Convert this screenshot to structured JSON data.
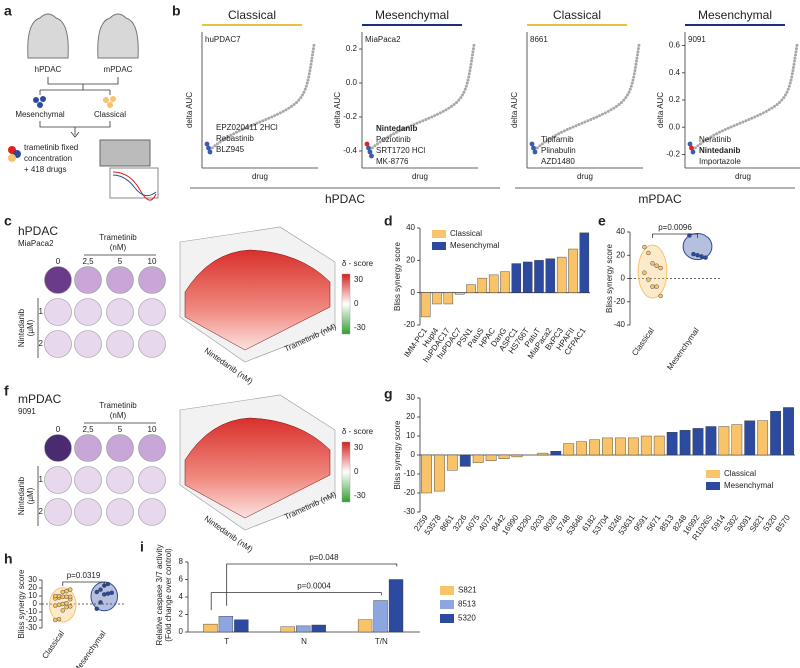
{
  "panel_labels": [
    "a",
    "b",
    "c",
    "d",
    "e",
    "f",
    "g",
    "h",
    "i"
  ],
  "a": {
    "hpdac": "hPDAC",
    "mpdac": "mPDAC",
    "mesenchymal": "Mesenchymal",
    "classical": "Classical",
    "treatment": [
      "trametinib fixed",
      "concentration",
      "+ 418 drugs"
    ]
  },
  "b": {
    "ylabel": "delta AUC",
    "xlabel": "drug",
    "groups": [
      "hPDAC",
      "mPDAC"
    ],
    "panels": [
      {
        "subtype": "Classical",
        "line": "huPDAC7",
        "hits": [
          "EPZ020411 2HCl",
          "Rebastinib",
          "BLZ945"
        ],
        "hit_colors": [
          "#3b5bb0",
          "#3b5bb0",
          "#3b5bb0"
        ]
      },
      {
        "subtype": "Mesenchymal",
        "line": "MiaPaca2",
        "hits": [
          "Nintedanib",
          "Poziotinib",
          "SRT1720 HCl",
          "MK-8776"
        ],
        "hit_colors": [
          "#e0201b",
          "#3b5bb0",
          "#3b5bb0",
          "#3b5bb0"
        ],
        "ylim": [
          -0.5,
          0.3
        ],
        "yticks": [
          0.2,
          {
            "value": 0,
            "label": "0.0"
          },
          -0.2,
          -0.4
        ]
      },
      {
        "subtype": "Classical",
        "line": "8661",
        "hits": [
          "Tipifarnib",
          "Plinabulin",
          "AZD1480"
        ],
        "hit_colors": [
          "#3b5bb0",
          "#3b5bb0",
          "#3b5bb0"
        ]
      },
      {
        "subtype": "Mesenchymal",
        "line": "9091",
        "hits": [
          "Neratinib",
          "Nintedanib",
          "Importazole"
        ],
        "hit_colors": [
          "#3b5bb0",
          "#e0201b",
          "#3b5bb0"
        ],
        "ylim": [
          -0.3,
          0.7
        ],
        "yticks": [
          0.6,
          0.4,
          0.2,
          {
            "value": 0,
            "label": "0.0"
          },
          -0.2
        ]
      }
    ]
  },
  "c": {
    "title": "hPDAC",
    "line": "MiaPaca2",
    "drug_x": "Trametinib",
    "unit_x": "(nM)",
    "doses_x": [
      "0",
      "2,5",
      "5",
      "10"
    ],
    "drug_y": "Nintedanib",
    "unit_y": "(µM)",
    "doses_y": [
      "1",
      "2"
    ],
    "score_label": "δ - score",
    "scale": [
      30,
      0,
      -30
    ],
    "axis3d": [
      "Nintedanib (nM)",
      "Trametinib (nM)"
    ]
  },
  "f": {
    "title": "mPDAC",
    "line": "9091",
    "drug_x": "Trametinib",
    "unit_x": "(nM)",
    "doses_x": [
      "0",
      "2,5",
      "5",
      "10"
    ],
    "drug_y": "Nintedanib",
    "unit_y": "(µM)",
    "doses_y": [
      "1",
      "2"
    ],
    "score_label": "δ - score",
    "scale": [
      30,
      0,
      -30
    ],
    "axis3d": [
      "Nintedanib (nM)",
      "Trametinib (nM)"
    ]
  },
  "d": {
    "type": "bar",
    "ylabel": "Bliss synergy score",
    "ylim": [
      -20,
      40
    ],
    "yticks": [
      -20,
      0,
      20,
      40
    ],
    "categories": [
      "IMM-PC1",
      "Hupt4",
      "huPDAC17",
      "huPDAC7",
      "PSN1",
      "PatuS",
      "HPAC",
      "DanG",
      "ASPC1",
      "HS766T",
      "PatuT",
      "MiaPaca2",
      "BxPC3",
      "HPAFII",
      "CFPAC1"
    ],
    "values": [
      -15,
      -7,
      -7,
      -1,
      5,
      9,
      11,
      13,
      18,
      19,
      20,
      21,
      22,
      27,
      37
    ],
    "colors": [
      "#f9c36a",
      "#f9c36a",
      "#f9c36a",
      "#f9c36a",
      "#f9c36a",
      "#f9c36a",
      "#f9c36a",
      "#f9c36a",
      "#2c4ba0",
      "#2c4ba0",
      "#2c4ba0",
      "#2c4ba0",
      "#f9c36a",
      "#f9c36a",
      "#2c4ba0"
    ],
    "legend": [
      {
        "name": "Classical",
        "color": "#f9c36a"
      },
      {
        "name": "Mesenchymal",
        "color": "#2c4ba0"
      }
    ]
  },
  "e": {
    "type": "dot",
    "ylabel": "Bliss synergy score",
    "ylim": [
      -40,
      40
    ],
    "yticks": [
      -40,
      -20,
      0,
      20,
      40
    ],
    "p": "p=0.0096",
    "groups": [
      {
        "name": "Classical",
        "color": "#f9c36a",
        "values": [
          27,
          22,
          13,
          11,
          9,
          5,
          -1,
          -7,
          -7,
          -15
        ]
      },
      {
        "name": "Mesenchymal",
        "color": "#2c4ba0",
        "values": [
          37,
          21,
          20,
          19,
          18
        ]
      }
    ]
  },
  "g": {
    "type": "bar",
    "ylabel": "Bliss synergy score",
    "ylim": [
      -30,
      30
    ],
    "yticks": [
      -30,
      -20,
      -10,
      0,
      10,
      20,
      30
    ],
    "categories": [
      "2259",
      "53578",
      "8661",
      "3226",
      "6075",
      "4072",
      "8442",
      "16990",
      "B290",
      "9203",
      "8028",
      "5748",
      "53646",
      "6182",
      "53704",
      "8246",
      "53631",
      "9591",
      "5671",
      "8513",
      "8248",
      "16992",
      "R1026S",
      "5914",
      "S302",
      "9091",
      "S821",
      "5320",
      "B570"
    ],
    "values": [
      -20,
      -19,
      -8,
      -6,
      -4,
      -3,
      -2,
      -1,
      0,
      1,
      2,
      6,
      7,
      8,
      9,
      9,
      9,
      10,
      10,
      12,
      13,
      14,
      15,
      15,
      16,
      18,
      18,
      23,
      25
    ],
    "colors": [
      "#f9c36a",
      "#f9c36a",
      "#f9c36a",
      "#2c4ba0",
      "#f9c36a",
      "#f9c36a",
      "#f9c36a",
      "#f9c36a",
      "#f9c36a",
      "#f9c36a",
      "#2c4ba0",
      "#f9c36a",
      "#f9c36a",
      "#f9c36a",
      "#f9c36a",
      "#f9c36a",
      "#f9c36a",
      "#f9c36a",
      "#f9c36a",
      "#2c4ba0",
      "#2c4ba0",
      "#2c4ba0",
      "#2c4ba0",
      "#f9c36a",
      "#f9c36a",
      "#2c4ba0",
      "#f9c36a",
      "#2c4ba0",
      "#2c4ba0"
    ],
    "legend": [
      {
        "name": "Classical",
        "color": "#f9c36a"
      },
      {
        "name": "Mesenchymal",
        "color": "#2c4ba0"
      }
    ]
  },
  "h": {
    "type": "dot",
    "ylabel": "Bliss synergy score",
    "ylim": [
      -30,
      30
    ],
    "yticks": [
      -30,
      -20,
      -10,
      0,
      10,
      20,
      30
    ],
    "p": "p=0.0319",
    "groups": [
      {
        "name": "Classical",
        "color": "#f9c36a",
        "values": [
          -20,
          -19,
          -8,
          -4,
          -3,
          -2,
          -1,
          0,
          1,
          6,
          7,
          8,
          9,
          9,
          9,
          10,
          10,
          15,
          16,
          18
        ]
      },
      {
        "name": "Mesenchymal",
        "color": "#2c4ba0",
        "values": [
          -6,
          2,
          12,
          13,
          14,
          15,
          18,
          23,
          25
        ]
      }
    ]
  },
  "i": {
    "type": "grouped_bar",
    "ylabel": [
      "Relative caspase 3/7 activity",
      "(Fold change over control)"
    ],
    "ylim": [
      0,
      8
    ],
    "yticks": [
      0,
      2,
      4,
      6,
      8
    ],
    "categories": [
      "T",
      "N",
      "T/N"
    ],
    "p": [
      "p=0.048",
      "p=0.0004"
    ],
    "series": [
      {
        "name": "S821",
        "color": "#f9c36a",
        "values": [
          0.9,
          0.6,
          1.4
        ]
      },
      {
        "name": "8513",
        "color": "#8ea6e0",
        "values": [
          1.8,
          0.7,
          3.6
        ]
      },
      {
        "name": "5320",
        "color": "#2c4ba0",
        "values": [
          1.4,
          0.8,
          6
        ]
      }
    ]
  }
}
